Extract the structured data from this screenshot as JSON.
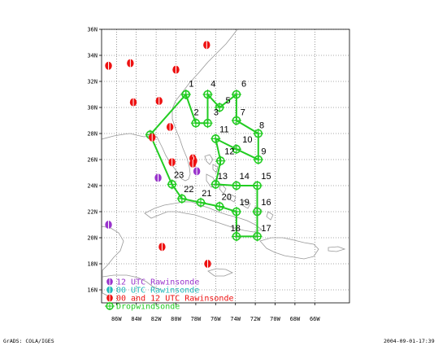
{
  "map": {
    "lat_min": 15,
    "lat_max": 36,
    "lon_min": -87.5,
    "lon_max": -62.5,
    "lat_ticks": [
      {
        "value": 16,
        "label": "16N"
      },
      {
        "value": 18,
        "label": "18N"
      },
      {
        "value": 20,
        "label": "20N"
      },
      {
        "value": 22,
        "label": "22N"
      },
      {
        "value": 24,
        "label": "24N"
      },
      {
        "value": 26,
        "label": "26N"
      },
      {
        "value": 28,
        "label": "28N"
      },
      {
        "value": 30,
        "label": "30N"
      },
      {
        "value": 32,
        "label": "32N"
      },
      {
        "value": 34,
        "label": "34N"
      },
      {
        "value": 36,
        "label": "36N"
      }
    ],
    "lon_ticks": [
      {
        "value": -86,
        "label": "86W"
      },
      {
        "value": -84,
        "label": "84W"
      },
      {
        "value": -82,
        "label": "82W"
      },
      {
        "value": -80,
        "label": "80W"
      },
      {
        "value": -78,
        "label": "78W"
      },
      {
        "value": -76,
        "label": "76W"
      },
      {
        "value": -74,
        "label": "74W"
      },
      {
        "value": -72,
        "label": "72W"
      },
      {
        "value": -70,
        "label": "70W"
      },
      {
        "value": -68,
        "label": "68W"
      },
      {
        "value": -66,
        "label": "66W"
      }
    ],
    "grid": "dotted",
    "colors": {
      "dropwindsonde": "#22cc22",
      "rawinsonde_00_12": "#ee1111",
      "rawinsonde_12": "#9933cc",
      "rawinsonde_00": "#22bbbb",
      "coast": "#999999"
    }
  },
  "dropwindsonde_track": [
    {
      "id": "1",
      "lat": 31.0,
      "lon": -79.0
    },
    {
      "id": "2",
      "lat": 28.8,
      "lon": -78.0
    },
    {
      "id": "3",
      "lat": 28.8,
      "lon": -76.8
    },
    {
      "id": "4",
      "lat": 31.0,
      "lon": -76.8
    },
    {
      "id": "5",
      "lat": 30.0,
      "lon": -75.6
    },
    {
      "id": "6",
      "lat": 31.0,
      "lon": -73.9
    },
    {
      "id": "7",
      "lat": 29.0,
      "lon": -73.9
    },
    {
      "id": "8",
      "lat": 28.0,
      "lon": -71.7
    },
    {
      "id": "9",
      "lat": 26.0,
      "lon": -71.7
    },
    {
      "id": "10",
      "lat": 26.8,
      "lon": -73.9
    },
    {
      "id": "11",
      "lat": 27.6,
      "lon": -76.0
    },
    {
      "id": "12",
      "lat": 25.9,
      "lon": -75.5
    },
    {
      "id": "13",
      "lat": 24.1,
      "lon": -76.0
    },
    {
      "id": "14",
      "lat": 24.0,
      "lon": -73.9
    },
    {
      "id": "15",
      "lat": 24.0,
      "lon": -71.8
    },
    {
      "id": "16",
      "lat": 22.0,
      "lon": -71.8
    },
    {
      "id": "17",
      "lat": 20.1,
      "lon": -71.8
    },
    {
      "id": "18",
      "lat": 20.1,
      "lon": -73.9
    },
    {
      "id": "19",
      "lat": 22.0,
      "lon": -73.9
    },
    {
      "id": "20",
      "lat": 22.4,
      "lon": -75.6
    },
    {
      "id": "21",
      "lat": 22.7,
      "lon": -77.5
    },
    {
      "id": "22",
      "lat": 23.0,
      "lon": -79.4
    },
    {
      "id": "23",
      "lat": 24.1,
      "lon": -80.4
    },
    {
      "id": "start",
      "lat": 27.9,
      "lon": -82.6
    },
    {
      "id": "back-to-1",
      "lat": 31.0,
      "lon": -79.0
    }
  ],
  "track_labels": [
    {
      "text": "1",
      "lat": 31.6,
      "lon": -78.7
    },
    {
      "text": "2",
      "lat": 29.4,
      "lon": -78.2
    },
    {
      "text": "3",
      "lat": 29.4,
      "lon": -76.2
    },
    {
      "text": "4",
      "lat": 31.6,
      "lon": -76.5
    },
    {
      "text": "5",
      "lat": 30.3,
      "lon": -75.0
    },
    {
      "text": "6",
      "lat": 31.6,
      "lon": -73.4
    },
    {
      "text": "7",
      "lat": 29.4,
      "lon": -73.5
    },
    {
      "text": "8",
      "lat": 28.4,
      "lon": -71.6
    },
    {
      "text": "9",
      "lat": 26.4,
      "lon": -71.4
    },
    {
      "text": "10",
      "lat": 27.3,
      "lon": -73.3
    },
    {
      "text": "11",
      "lat": 28.1,
      "lon": -75.6
    },
    {
      "text": "12",
      "lat": 26.4,
      "lon": -75.1
    },
    {
      "text": "13",
      "lat": 24.5,
      "lon": -75.8
    },
    {
      "text": "14",
      "lat": 24.5,
      "lon": -73.6
    },
    {
      "text": "15",
      "lat": 24.5,
      "lon": -71.4
    },
    {
      "text": "16",
      "lat": 22.5,
      "lon": -71.4
    },
    {
      "text": "17",
      "lat": 20.5,
      "lon": -71.4
    },
    {
      "text": "18",
      "lat": 20.5,
      "lon": -74.5
    },
    {
      "text": "19",
      "lat": 22.5,
      "lon": -73.6
    },
    {
      "text": "20",
      "lat": 22.9,
      "lon": -75.4
    },
    {
      "text": "21",
      "lat": 23.2,
      "lon": -77.4
    },
    {
      "text": "22",
      "lat": 23.5,
      "lon": -79.2
    },
    {
      "text": "23",
      "lat": 24.6,
      "lon": -80.2
    }
  ],
  "rawinsondes": [
    {
      "lat": 33.2,
      "lon": -86.8,
      "type": "00_12"
    },
    {
      "lat": 33.4,
      "lon": -84.6,
      "type": "00_12"
    },
    {
      "lat": 30.4,
      "lon": -84.3,
      "type": "00_12"
    },
    {
      "lat": 30.5,
      "lon": -81.7,
      "type": "00_12"
    },
    {
      "lat": 32.9,
      "lon": -80.0,
      "type": "00_12"
    },
    {
      "lat": 34.8,
      "lon": -76.9,
      "type": "00_12"
    },
    {
      "lat": 28.5,
      "lon": -80.6,
      "type": "00_12"
    },
    {
      "lat": 27.7,
      "lon": -82.4,
      "type": "00_12"
    },
    {
      "lat": 25.8,
      "lon": -80.4,
      "type": "00_12"
    },
    {
      "lat": 26.1,
      "lon": -78.3,
      "type": "00_12"
    },
    {
      "lat": 25.9,
      "lon": -78.2,
      "type": "00_12"
    },
    {
      "lat": 25.7,
      "lon": -78.3,
      "type": "00_12"
    },
    {
      "lat": 19.3,
      "lon": -81.4,
      "type": "00_12"
    },
    {
      "lat": 18.0,
      "lon": -76.8,
      "type": "00_12"
    },
    {
      "lat": 25.1,
      "lon": -77.9,
      "type": "12"
    },
    {
      "lat": 24.6,
      "lon": -81.8,
      "type": "12"
    },
    {
      "lat": 21.0,
      "lon": -86.8,
      "type": "12"
    }
  ],
  "legend": [
    {
      "label": "12 UTC Rawinsonde",
      "type": "12",
      "color": "#9933cc"
    },
    {
      "label": "00 UTC Rawinsonde",
      "type": "00",
      "color": "#22bbbb"
    },
    {
      "label": "00 and 12 UTC Rawinsonde",
      "type": "00_12",
      "color": "#ee1111"
    },
    {
      "label": "Dropwindsonde",
      "type": "drop",
      "color": "#22cc22"
    }
  ],
  "footer": {
    "left": "GrADS: COLA/IGES",
    "right": "2004-09-01-17:39"
  }
}
